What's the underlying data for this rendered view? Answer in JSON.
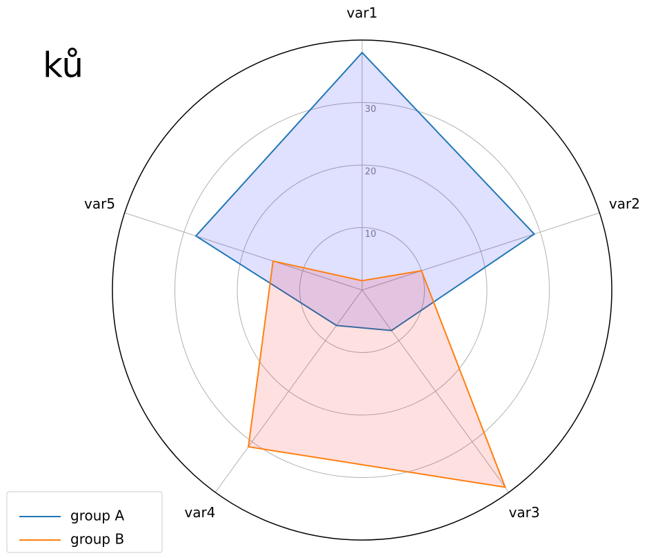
{
  "chart_data": {
    "type": "radar",
    "title": "ků",
    "categories": [
      "var1",
      "var2",
      "var3",
      "var4",
      "var5"
    ],
    "series": [
      {
        "name": "group A",
        "color": "#1f77b4",
        "fill": "rgba(0,0,255,0.12)",
        "values": [
          38,
          29,
          8,
          7,
          28
        ]
      },
      {
        "name": "group B",
        "color": "#ff7f0e",
        "fill": "rgba(255,0,0,0.12)",
        "values": [
          1.5,
          10,
          39,
          31,
          15
        ]
      }
    ],
    "ylim": [
      0,
      40
    ],
    "yticks": [
      10,
      20,
      30
    ],
    "grid": true,
    "legend": "lower left"
  }
}
